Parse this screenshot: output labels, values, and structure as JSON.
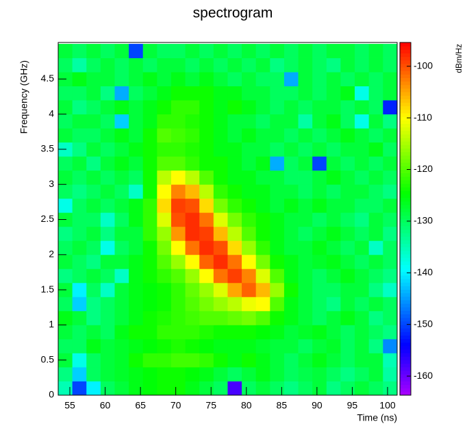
{
  "chart_data": {
    "type": "heatmap",
    "title": "spectrogram",
    "x_label": "Time (ns)",
    "y_label": "Frequency (GHz)",
    "colorbar_label": "dBm/Hz",
    "colormap": "rainbow",
    "xlim": [
      53.35,
      101.36
    ],
    "ylim": [
      0,
      5.02
    ],
    "zlim": [
      -163.7,
      -95.4
    ],
    "xticks": [
      55,
      60,
      65,
      70,
      75,
      80,
      85,
      90,
      95,
      100
    ],
    "yticks": [
      0,
      0.5,
      1,
      1.5,
      2,
      2.5,
      3,
      3.5,
      4,
      4.5
    ],
    "zticks": [
      -100,
      -110,
      -120,
      -130,
      -140,
      -150,
      -160
    ],
    "xbins": [
      53.35,
      55.35,
      57.35,
      59.35,
      61.35,
      63.35,
      65.35,
      67.35,
      69.35,
      71.35,
      73.35,
      75.35,
      77.35,
      79.35,
      81.35,
      83.35,
      85.35,
      87.35,
      89.35,
      91.35,
      93.35,
      95.35,
      97.35,
      99.35,
      101.35
    ],
    "ybins": [
      0,
      0.2,
      0.4,
      0.6,
      0.8,
      1.0,
      1.2,
      1.4,
      1.6,
      1.8,
      2.0,
      2.2,
      2.4,
      2.6,
      2.8,
      3.0,
      3.2,
      3.4,
      3.6,
      3.8,
      4.0,
      4.2,
      4.4,
      4.6,
      4.8,
      5.0
    ],
    "z": [
      [
        -135,
        -150,
        -140,
        -130,
        -128,
        -126,
        -125,
        -124,
        -124,
        -126,
        -128,
        -130,
        -158,
        -130,
        -128,
        -130,
        -132,
        -130,
        -128,
        -132,
        -130,
        -128,
        -130,
        -132
      ],
      [
        -132,
        -142,
        -130,
        -128,
        -127,
        -126,
        -125,
        -124,
        -124,
        -125,
        -126,
        -128,
        -130,
        -128,
        -126,
        -128,
        -130,
        -129,
        -128,
        -130,
        -132,
        -130,
        -128,
        -134
      ],
      [
        -128,
        -138,
        -130,
        -128,
        -127,
        -124,
        -122,
        -122,
        -121,
        -121,
        -122,
        -124,
        -126,
        -124,
        -126,
        -128,
        -130,
        -128,
        -126,
        -128,
        -130,
        -128,
        -128,
        -135
      ],
      [
        -130,
        -130,
        -126,
        -128,
        -127,
        -126,
        -125,
        -124,
        -123,
        -124,
        -125,
        -126,
        -126,
        -126,
        -127,
        -128,
        -128,
        -130,
        -128,
        -127,
        -130,
        -128,
        -132,
        -146
      ],
      [
        -128,
        -130,
        -128,
        -130,
        -126,
        -124,
        -124,
        -122,
        -122,
        -122,
        -123,
        -124,
        -124,
        -124,
        -125,
        -126,
        -128,
        -127,
        -126,
        -128,
        -130,
        -128,
        -130,
        -132
      ],
      [
        -126,
        -128,
        -132,
        -130,
        -128,
        -126,
        -124,
        -123,
        -122,
        -121,
        -120,
        -120,
        -119,
        -118,
        -120,
        -124,
        -126,
        -128,
        -130,
        -128,
        -126,
        -128,
        -132,
        -130
      ],
      [
        -130,
        -142,
        -132,
        -130,
        -128,
        -126,
        -125,
        -124,
        -122,
        -120,
        -118,
        -116,
        -114,
        -111,
        -110,
        -120,
        -126,
        -128,
        -130,
        -132,
        -128,
        -130,
        -128,
        -130
      ],
      [
        -128,
        -140,
        -130,
        -136,
        -128,
        -126,
        -125,
        -124,
        -122,
        -119,
        -116,
        -112,
        -105,
        -101,
        -106,
        -116,
        -124,
        -128,
        -130,
        -130,
        -128,
        -128,
        -132,
        -136
      ],
      [
        -132,
        -130,
        -128,
        -130,
        -136,
        -126,
        -124,
        -122,
        -120,
        -116,
        -110,
        -102,
        -99,
        -103,
        -112,
        -120,
        -126,
        -128,
        -130,
        -128,
        -126,
        -128,
        -130,
        -132
      ],
      [
        -128,
        -130,
        -132,
        -128,
        -128,
        -126,
        -124,
        -120,
        -116,
        -110,
        -101,
        -98,
        -102,
        -110,
        -118,
        -124,
        -126,
        -128,
        -127,
        -126,
        -128,
        -130,
        -128,
        -130
      ],
      [
        -130,
        -128,
        -130,
        -138,
        -130,
        -128,
        -124,
        -118,
        -110,
        -102,
        -98,
        -100,
        -108,
        -116,
        -122,
        -126,
        -128,
        -128,
        -126,
        -128,
        -130,
        -128,
        -136,
        -130
      ],
      [
        -132,
        -130,
        -128,
        -132,
        -128,
        -128,
        -122,
        -116,
        -104,
        -98,
        -99,
        -106,
        -114,
        -120,
        -124,
        -126,
        -128,
        -130,
        -128,
        -126,
        -128,
        -130,
        -128,
        -132
      ],
      [
        -128,
        -130,
        -130,
        -136,
        -130,
        -126,
        -122,
        -112,
        -100,
        -98,
        -102,
        -112,
        -118,
        -122,
        -124,
        -126,
        -128,
        -128,
        -130,
        -128,
        -130,
        -132,
        -128,
        -130
      ],
      [
        -138,
        -130,
        -128,
        -130,
        -128,
        -126,
        -122,
        -108,
        -99,
        -100,
        -108,
        -118,
        -122,
        -124,
        -126,
        -128,
        -126,
        -128,
        -126,
        -128,
        -128,
        -130,
        -130,
        -128
      ],
      [
        -130,
        -132,
        -130,
        -128,
        -130,
        -136,
        -124,
        -110,
        -103,
        -106,
        -114,
        -122,
        -124,
        -126,
        -126,
        -128,
        -128,
        -130,
        -128,
        -130,
        -128,
        -128,
        -130,
        -132
      ],
      [
        -128,
        -130,
        -128,
        -130,
        -128,
        -130,
        -124,
        -114,
        -110,
        -114,
        -120,
        -124,
        -126,
        -126,
        -128,
        -128,
        -130,
        -130,
        -128,
        -126,
        -128,
        -130,
        -128,
        -130
      ],
      [
        -130,
        -128,
        -132,
        -128,
        -126,
        -128,
        -124,
        -120,
        -120,
        -122,
        -124,
        -124,
        -126,
        -128,
        -126,
        -144,
        -130,
        -128,
        -150,
        -128,
        -130,
        -128,
        -130,
        -128
      ],
      [
        -136,
        -132,
        -128,
        -130,
        -128,
        -126,
        -124,
        -122,
        -122,
        -123,
        -124,
        -126,
        -126,
        -128,
        -128,
        -130,
        -128,
        -130,
        -128,
        -130,
        -128,
        -128,
        -126,
        -130
      ],
      [
        -128,
        -130,
        -130,
        -128,
        -126,
        -128,
        -124,
        -120,
        -121,
        -122,
        -124,
        -126,
        -128,
        -126,
        -128,
        -128,
        -130,
        -128,
        -130,
        -128,
        -126,
        -128,
        -130,
        -128
      ],
      [
        -130,
        -128,
        -128,
        -130,
        -142,
        -128,
        -126,
        -122,
        -122,
        -123,
        -124,
        -126,
        -128,
        -128,
        -130,
        -128,
        -128,
        -134,
        -128,
        -126,
        -130,
        -138,
        -128,
        -132
      ],
      [
        -128,
        -132,
        -130,
        -128,
        -126,
        -128,
        -126,
        -124,
        -122,
        -122,
        -124,
        -126,
        -124,
        -126,
        -128,
        -130,
        -128,
        -130,
        -128,
        -128,
        -130,
        -128,
        -130,
        -152
      ],
      [
        -130,
        -130,
        -128,
        -132,
        -144,
        -130,
        -128,
        -126,
        -124,
        -124,
        -124,
        -126,
        -126,
        -128,
        -128,
        -130,
        -130,
        -128,
        -130,
        -128,
        -126,
        -138,
        -130,
        -128
      ],
      [
        -128,
        -126,
        -128,
        -128,
        -130,
        -128,
        -126,
        -128,
        -126,
        -128,
        -126,
        -128,
        -130,
        -128,
        -130,
        -130,
        -144,
        -128,
        -130,
        -128,
        -130,
        -128,
        -130,
        -128
      ],
      [
        -130,
        -134,
        -130,
        -128,
        -130,
        -128,
        -130,
        -128,
        -128,
        -130,
        -128,
        -130,
        -128,
        -130,
        -128,
        -132,
        -130,
        -128,
        -130,
        -132,
        -128,
        -130,
        -128,
        -130
      ],
      [
        -128,
        -130,
        -128,
        -130,
        -128,
        -150,
        -128,
        -130,
        -130,
        -128,
        -130,
        -128,
        -130,
        -128,
        -130,
        -128,
        -130,
        -128,
        -130,
        -128,
        -128,
        -130,
        -128,
        -130
      ]
    ]
  }
}
